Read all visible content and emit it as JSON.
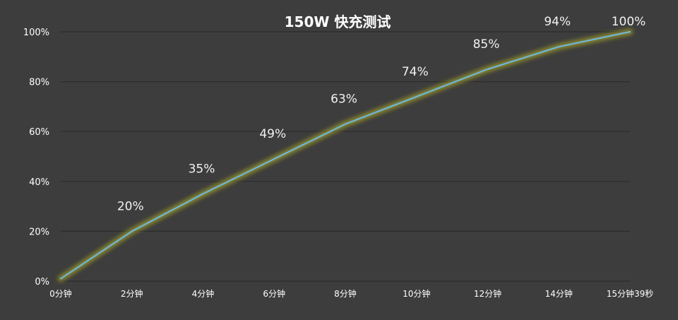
{
  "chart_data": {
    "type": "line",
    "title": "150W 快充测试",
    "categories": [
      "0分钟",
      "2分钟",
      "4分钟",
      "6分钟",
      "8分钟",
      "10分钟",
      "12分钟",
      "14分钟",
      "15分钟39秒"
    ],
    "values": [
      1,
      20,
      35,
      49,
      63,
      74,
      85,
      94,
      100
    ],
    "data_labels": [
      "",
      "20%",
      "35%",
      "49%",
      "63%",
      "74%",
      "85%",
      "94%",
      "100%"
    ],
    "y_ticks": [
      "0%",
      "20%",
      "40%",
      "60%",
      "80%",
      "100%"
    ],
    "ylim": [
      0,
      100
    ],
    "grid": true,
    "legend": "none",
    "xlabel": "",
    "ylabel": "",
    "colors": {
      "line": "#6fb6d6",
      "glow": "#9c9a2a",
      "background": "#3d3d3d",
      "grid": "#2c2c2c",
      "text": "#ffffff"
    }
  }
}
